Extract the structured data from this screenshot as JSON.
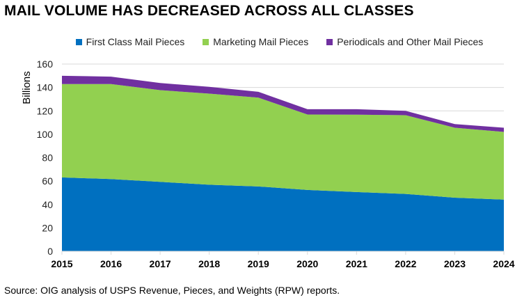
{
  "chart_data": {
    "type": "area",
    "stacked": true,
    "title": "MAIL VOLUME HAS DECREASED ACROSS ALL CLASSES",
    "ylabel": "Billions",
    "xlabel": "",
    "ylim": [
      0,
      160
    ],
    "yticks": [
      0,
      20,
      40,
      60,
      80,
      100,
      120,
      140,
      160
    ],
    "categories": [
      "2015",
      "2016",
      "2017",
      "2018",
      "2019",
      "2020",
      "2021",
      "2022",
      "2023",
      "2024"
    ],
    "grid": true,
    "legend_position": "top",
    "series": [
      {
        "name": "First Class Mail Pieces",
        "color": "#0070C0",
        "values": [
          63.1,
          61.7,
          59.3,
          56.9,
          55.4,
          52.4,
          50.6,
          49.0,
          45.8,
          44.2
        ]
      },
      {
        "name": "Marketing Mail Pieces",
        "color": "#92D050",
        "values": [
          79.8,
          81.2,
          78.4,
          77.8,
          75.9,
          64.5,
          66.1,
          67.3,
          59.8,
          57.8
        ]
      },
      {
        "name": "Periodicals and Other Mail Pieces",
        "color": "#7030A0",
        "values": [
          7.1,
          6.3,
          6.1,
          5.8,
          5.0,
          4.5,
          4.7,
          3.7,
          3.1,
          3.6
        ]
      }
    ]
  },
  "source": "Source: OIG analysis of USPS Revenue, Pieces, and Weights (RPW) reports."
}
